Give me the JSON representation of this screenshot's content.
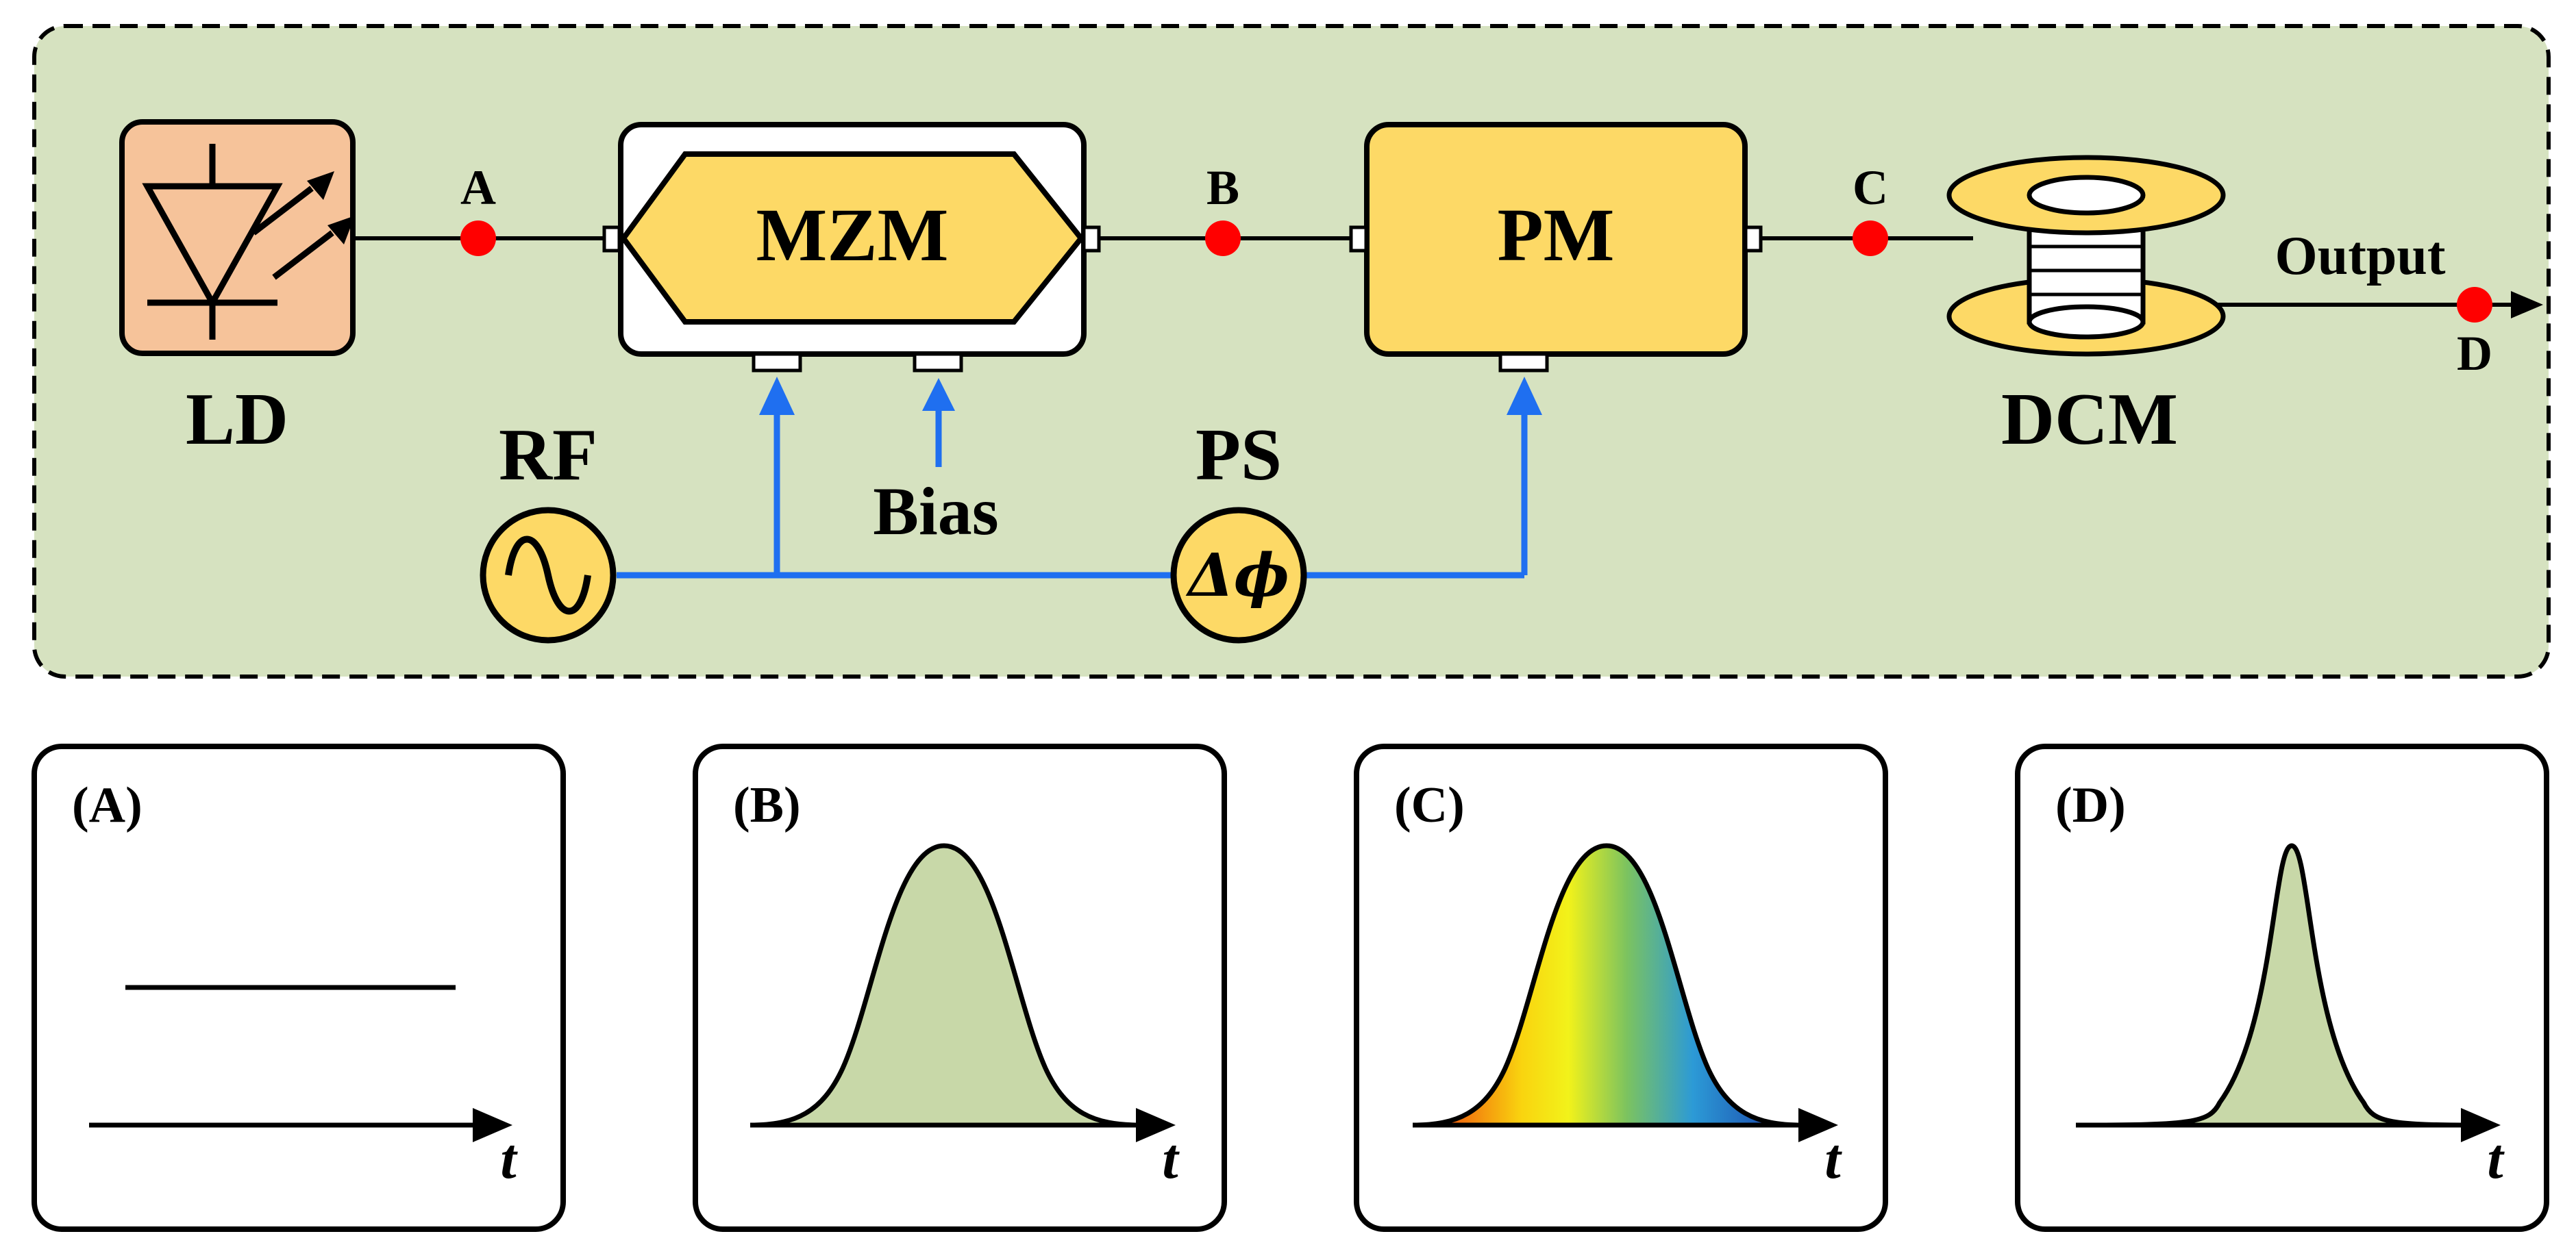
{
  "diagram": {
    "components": {
      "ld": "LD",
      "mzm": "MZM",
      "pm": "PM",
      "dcm": "DCM",
      "rf": "RF",
      "ps": "PS",
      "bias": "Bias",
      "output": "Output",
      "phase_symbol": "Δϕ"
    },
    "points": {
      "a": "A",
      "b": "B",
      "c": "C",
      "d": "D"
    },
    "panels": [
      {
        "id": "(A)",
        "axis": "t",
        "waveform": "constant"
      },
      {
        "id": "(B)",
        "axis": "t",
        "waveform": "gaussian"
      },
      {
        "id": "(C)",
        "axis": "t",
        "waveform": "chirped gaussian"
      },
      {
        "id": "(D)",
        "axis": "t",
        "waveform": "compressed gaussian"
      }
    ]
  },
  "colors": {
    "setup_bg": "#d6e2c0",
    "ld_fill": "#f6c39a",
    "module_fill": "#fdd966",
    "rf_line": "#1f6ff0",
    "node": "#ff0000",
    "pulse_fill": "#c8d8a8"
  }
}
